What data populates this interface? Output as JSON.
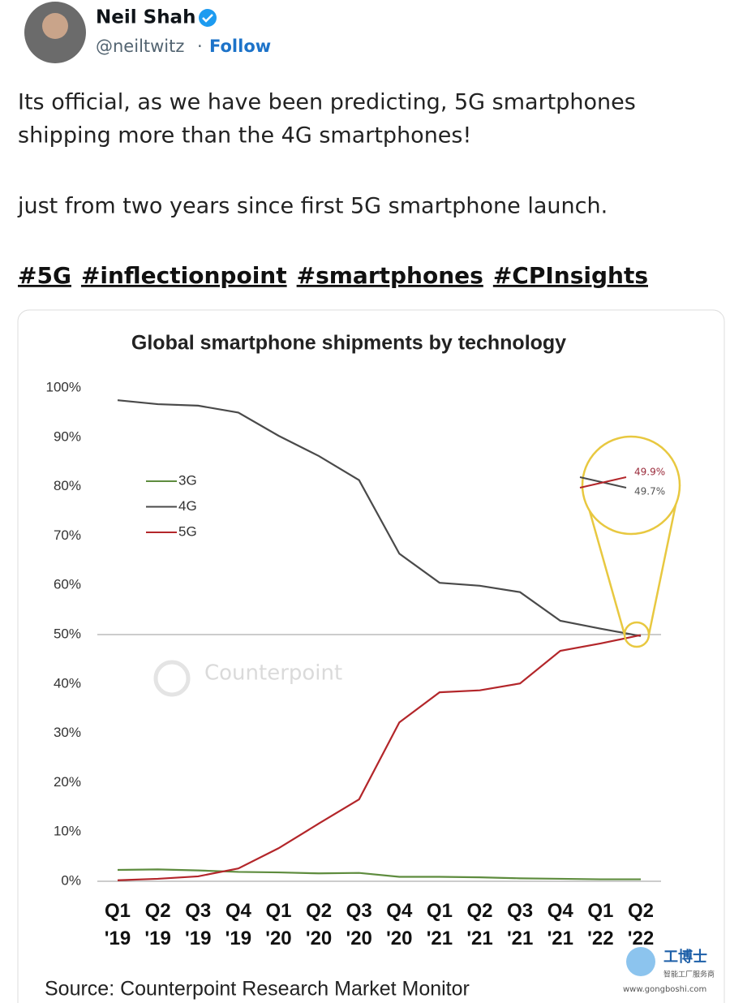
{
  "tweet": {
    "name": "Neil Shah",
    "handle": "@neiltwitz",
    "separator": "·",
    "follow": "Follow",
    "text_lines": [
      "Its official, as we have been predicting, 5G smartphones",
      "shipping more than the 4G smartphones!",
      "just from two years since first 5G smartphone launch."
    ],
    "hashtags": [
      "#5G",
      "#inflectionpoint",
      "#smartphones",
      "#CPInsights"
    ]
  },
  "chart_data": {
    "type": "line",
    "title": "Global smartphone shipments by technology",
    "categories": [
      "Q1 '19",
      "Q2 '19",
      "Q3 '19",
      "Q4 '19",
      "Q1 '20",
      "Q2 '20",
      "Q3 '20",
      "Q4 '20",
      "Q1 '21",
      "Q2 '21",
      "Q3 '21",
      "Q4 '21",
      "Q1 '22",
      "Q2 '22"
    ],
    "series": [
      {
        "name": "3G",
        "color": "#5e8c3e",
        "values": [
          2.3,
          2.4,
          2.2,
          1.9,
          1.8,
          1.6,
          1.7,
          0.9,
          0.9,
          0.8,
          0.6,
          0.5,
          0.4,
          0.4
        ]
      },
      {
        "name": "4G",
        "color": "#4a4a4a",
        "values": [
          97.5,
          96.7,
          96.4,
          95,
          90.3,
          86.2,
          81.3,
          66.4,
          60.5,
          59.9,
          58.6,
          52.8,
          51.2,
          49.7
        ]
      },
      {
        "name": "5G",
        "color": "#b3262a",
        "values": [
          0.2,
          0.5,
          1,
          2.6,
          6.7,
          11.7,
          16.6,
          32.2,
          38.3,
          38.7,
          40.1,
          46.7,
          48.2,
          49.9
        ]
      }
    ],
    "ylim": [
      0,
      100
    ],
    "yticks": [
      {
        "value": 0,
        "label": "0%"
      },
      {
        "value": 10,
        "label": "10%"
      },
      {
        "value": 20,
        "label": "20%"
      },
      {
        "value": 30,
        "label": "30%"
      },
      {
        "value": 40,
        "label": "40%"
      },
      {
        "value": 50,
        "label": "50%"
      },
      {
        "value": 60,
        "label": "60%"
      },
      {
        "value": 70,
        "label": "70%"
      },
      {
        "value": 80,
        "label": "80%"
      },
      {
        "value": 90,
        "label": "90%"
      },
      {
        "value": 100,
        "label": "100%"
      }
    ],
    "reference_line": 50,
    "legend": "left",
    "grid": false,
    "annotations": [
      "49.9%",
      "49.7%"
    ],
    "watermark": "Counterpoint",
    "source": "Source: Counterpoint Research Market Monitor"
  },
  "site_watermark": {
    "name": "工博士",
    "tagline": "智能工厂服务商",
    "url": "www.gongboshi.com"
  }
}
